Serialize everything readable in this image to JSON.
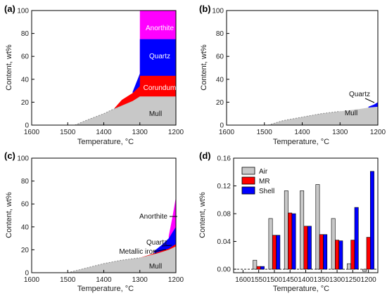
{
  "panels": [
    {
      "label": "(a)",
      "xlabel": "Temperature, °C",
      "ylabel": "Content, wt%"
    },
    {
      "label": "(b)",
      "xlabel": "Temperature, °C",
      "ylabel": "Content, wt%"
    },
    {
      "label": "(c)",
      "xlabel": "Temperature, °C",
      "ylabel": "Content, wt%"
    },
    {
      "label": "(d)",
      "xlabel": "Temperature, °C",
      "ylabel": "Content, wt%"
    }
  ],
  "colors": {
    "mull": "#c8c8c8",
    "corundum": "#ff0000",
    "quartz": "#0000ff",
    "anorthite": "#ff00ff",
    "metallic_iron": "#ff0000",
    "air": "#c8c8c8",
    "mr": "#ff0000",
    "shell": "#0000ff"
  },
  "chart_data": [
    {
      "type": "area",
      "panel": "a",
      "xlabel": "Temperature, °C",
      "ylabel": "Content, wt%",
      "xlim": [
        1600,
        1200
      ],
      "ylim": [
        0,
        100
      ],
      "x_ticks": [
        1600,
        1500,
        1400,
        1300,
        1200
      ],
      "y_ticks": [
        0,
        20,
        40,
        60,
        80,
        100
      ],
      "series": [
        {
          "name": "Mull",
          "x": [
            1480,
            1450,
            1400,
            1380,
            1350,
            1320,
            1300,
            1300,
            1200
          ],
          "top": [
            0,
            4,
            10,
            13,
            17,
            21,
            25,
            25,
            25
          ]
        },
        {
          "name": "Corundum",
          "x": [
            1370,
            1350,
            1320,
            1300,
            1300,
            1200
          ],
          "top": [
            15,
            22,
            28,
            34,
            43,
            43
          ]
        },
        {
          "name": "Quartz",
          "x": [
            1320,
            1300,
            1300,
            1200
          ],
          "top": [
            29,
            45,
            75,
            75
          ]
        },
        {
          "name": "Anorthite",
          "x": [
            1300,
            1200
          ],
          "top": [
            100,
            100
          ]
        }
      ],
      "annotations": [
        "Anorthite",
        "Quartz",
        "Corundum",
        "Mull"
      ]
    },
    {
      "type": "area",
      "panel": "b",
      "xlabel": "Temperature, °C",
      "ylabel": "Content, wt%",
      "xlim": [
        1600,
        1200
      ],
      "ylim": [
        0,
        100
      ],
      "x_ticks": [
        1600,
        1500,
        1400,
        1300,
        1200
      ],
      "y_ticks": [
        0,
        20,
        40,
        60,
        80,
        100
      ],
      "series": [
        {
          "name": "Mull",
          "x": [
            1490,
            1450,
            1400,
            1350,
            1300,
            1250,
            1220,
            1200
          ],
          "top": [
            0,
            4,
            7,
            10,
            12,
            14,
            15.5,
            16
          ]
        },
        {
          "name": "Quartz",
          "x": [
            1225,
            1210,
            1200
          ],
          "top": [
            16,
            18,
            20
          ]
        }
      ],
      "annotations": [
        "Quartz",
        "Mull"
      ]
    },
    {
      "type": "area",
      "panel": "c",
      "xlabel": "Temperature, °C",
      "ylabel": "Content, wt%",
      "xlim": [
        1600,
        1200
      ],
      "ylim": [
        0,
        100
      ],
      "x_ticks": [
        1600,
        1500,
        1400,
        1300,
        1200
      ],
      "y_ticks": [
        0,
        20,
        40,
        60,
        80,
        100
      ],
      "series": [
        {
          "name": "Mull",
          "x": [
            1500,
            1450,
            1400,
            1350,
            1300,
            1250,
            1220,
            1200
          ],
          "top": [
            0,
            4,
            8,
            11,
            13,
            17,
            20,
            23
          ]
        },
        {
          "name": "Metallic iron",
          "x": [
            1300,
            1250,
            1220,
            1200
          ],
          "top": [
            13,
            18,
            21,
            25
          ]
        },
        {
          "name": "Quartz",
          "x": [
            1260,
            1240,
            1220,
            1200
          ],
          "top": [
            19,
            24,
            30,
            40
          ]
        },
        {
          "name": "Anorthite",
          "x": [
            1220,
            1210,
            1200
          ],
          "top": [
            32,
            48,
            66
          ]
        }
      ],
      "annotations": [
        "Anorthite",
        "Quartz",
        "Metallic iron",
        "Mull"
      ]
    },
    {
      "type": "bar",
      "panel": "d",
      "xlabel": "Temperature, °C",
      "ylabel": "Content, wt%",
      "ylim": [
        -0.005,
        0.16
      ],
      "y_ticks": [
        "0.00",
        "0.04",
        "0.08",
        "0.12",
        "0.16"
      ],
      "categories": [
        "1600",
        "1550",
        "1500",
        "1450",
        "1400",
        "1350",
        "1300",
        "1250",
        "1200"
      ],
      "series": [
        {
          "name": "Air",
          "values": [
            0,
            0.013,
            0.073,
            0.113,
            0.113,
            0.122,
            0.073,
            0.008,
            -0.003
          ]
        },
        {
          "name": "MR",
          "values": [
            0,
            0.004,
            0.049,
            0.081,
            0.062,
            0.05,
            0.042,
            0.042,
            0.046
          ]
        },
        {
          "name": "Shell",
          "values": [
            0,
            0.004,
            0.049,
            0.08,
            0.062,
            0.05,
            0.041,
            0.089,
            0.141
          ]
        }
      ],
      "legend_position": "top-left"
    }
  ]
}
